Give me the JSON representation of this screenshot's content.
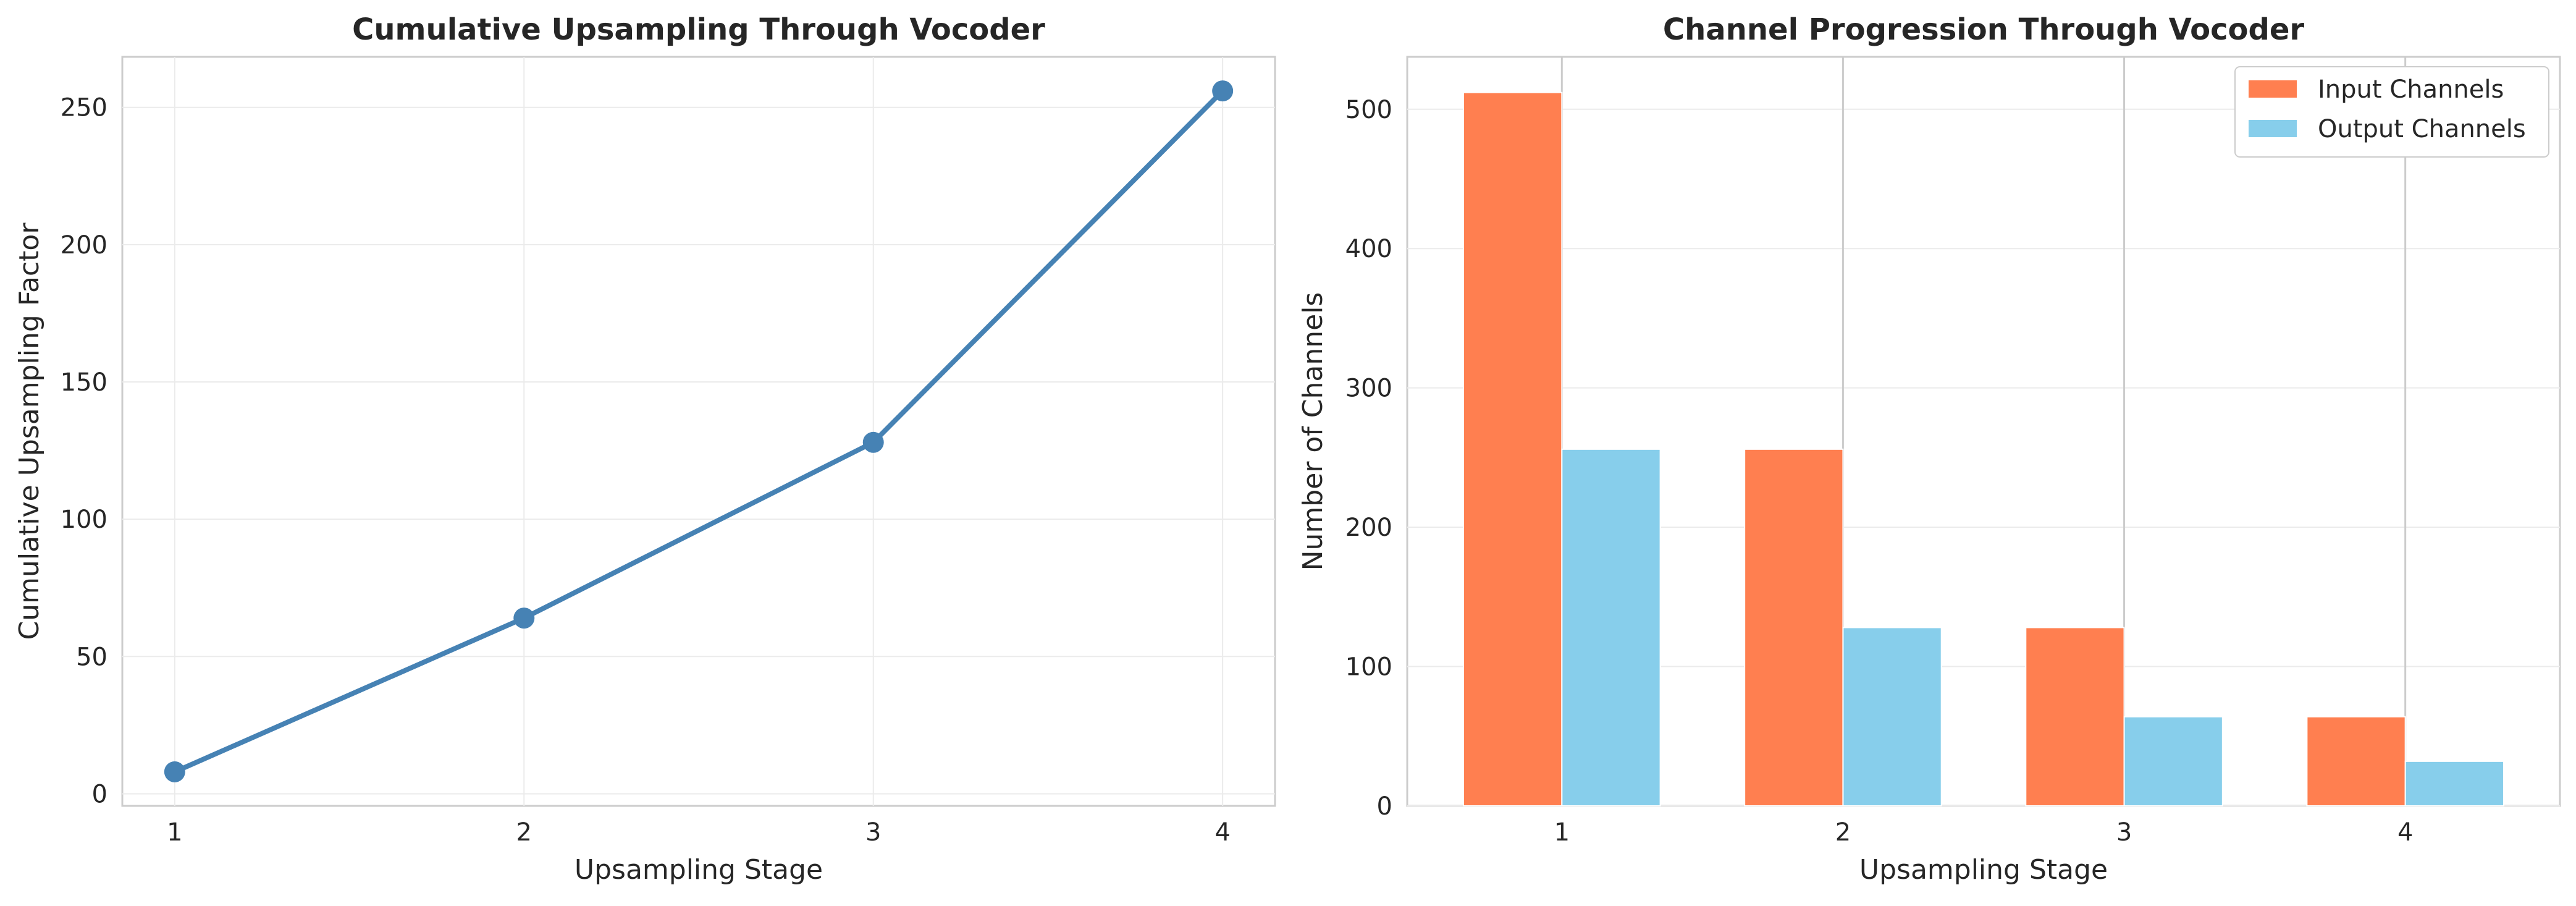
{
  "chart_data": [
    {
      "type": "line",
      "title": "Cumulative Upsampling Through Vocoder",
      "xlabel": "Upsampling Stage",
      "ylabel": "Cumulative Upsampling Factor",
      "x": [
        1,
        2,
        3,
        4
      ],
      "y": [
        8,
        64,
        128,
        256
      ],
      "xticks": [
        1,
        2,
        3,
        4
      ],
      "yticks": [
        0,
        50,
        100,
        150,
        200,
        250
      ],
      "xlim": [
        0.85,
        4.15
      ],
      "ylim": [
        -4.4,
        268.4
      ],
      "color": "#4682B4",
      "marker": "circle",
      "grid": true
    },
    {
      "type": "bar",
      "title": "Channel Progression Through Vocoder",
      "xlabel": "Upsampling Stage",
      "ylabel": "Number of Channels",
      "categories": [
        "1",
        "2",
        "3",
        "4"
      ],
      "series": [
        {
          "name": "Input Channels",
          "values": [
            512,
            256,
            128,
            64
          ],
          "color": "#FF7F50"
        },
        {
          "name": "Output Channels",
          "values": [
            256,
            128,
            64,
            32
          ],
          "color": "#87CEEB"
        }
      ],
      "yticks": [
        0,
        100,
        200,
        300,
        400,
        500
      ],
      "ylim": [
        0,
        537.6
      ],
      "legend": "top-right",
      "grid": true
    }
  ]
}
